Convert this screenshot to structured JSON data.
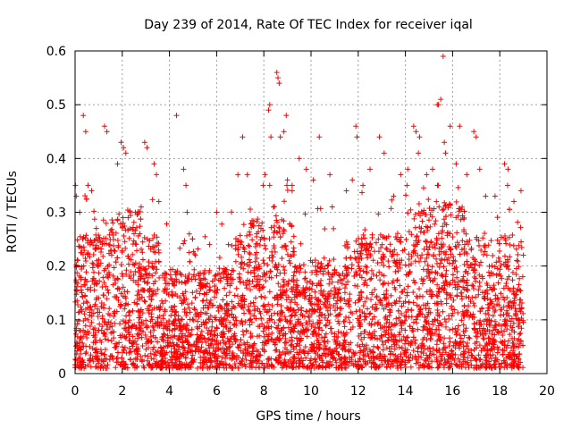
{
  "chart_data": {
    "type": "scatter",
    "title": "Day 239 of 2014, Rate Of TEC Index for receiver iqal",
    "xlabel": "GPS time / hours",
    "ylabel": "ROTI / TECUs",
    "xlim": [
      0,
      20
    ],
    "ylim": [
      0,
      0.6
    ],
    "xticks": [
      "0",
      "2",
      "4",
      "6",
      "8",
      "10",
      "12",
      "14",
      "16",
      "18",
      "20"
    ],
    "yticks": [
      "0",
      "0.1",
      "0.2",
      "0.3",
      "0.4",
      "0.5",
      "0.6"
    ],
    "grid": true,
    "marker": "plus",
    "color": "#ff0000",
    "data_range_hours": [
      0,
      19
    ],
    "series": [
      {
        "name": "ROTI",
        "points": [
          [
            0.05,
            0.33
          ],
          [
            0.2,
            0.3
          ],
          [
            0.35,
            0.48
          ],
          [
            0.45,
            0.45
          ],
          [
            0.55,
            0.35
          ],
          [
            0.7,
            0.34
          ],
          [
            0.9,
            0.27
          ],
          [
            1.25,
            0.46
          ],
          [
            1.35,
            0.45
          ],
          [
            1.6,
            0.28
          ],
          [
            1.8,
            0.39
          ],
          [
            1.95,
            0.43
          ],
          [
            2.05,
            0.42
          ],
          [
            2.15,
            0.41
          ],
          [
            2.25,
            0.29
          ],
          [
            2.5,
            0.26
          ],
          [
            2.8,
            0.31
          ],
          [
            2.95,
            0.43
          ],
          [
            3.05,
            0.42
          ],
          [
            3.35,
            0.39
          ],
          [
            3.55,
            0.32
          ],
          [
            3.45,
            0.37
          ],
          [
            4.3,
            0.48
          ],
          [
            4.6,
            0.38
          ],
          [
            4.7,
            0.35
          ],
          [
            4.75,
            0.3
          ],
          [
            5.1,
            0.22
          ],
          [
            5.7,
            0.24
          ],
          [
            6.0,
            0.3
          ],
          [
            6.5,
            0.24
          ],
          [
            6.9,
            0.37
          ],
          [
            7.1,
            0.44
          ],
          [
            7.3,
            0.37
          ],
          [
            7.5,
            0.28
          ],
          [
            7.7,
            0.26
          ],
          [
            8.05,
            0.37
          ],
          [
            8.2,
            0.49
          ],
          [
            8.25,
            0.5
          ],
          [
            8.3,
            0.44
          ],
          [
            8.55,
            0.56
          ],
          [
            8.6,
            0.55
          ],
          [
            8.65,
            0.54
          ],
          [
            8.7,
            0.44
          ],
          [
            8.85,
            0.45
          ],
          [
            8.95,
            0.48
          ],
          [
            9.0,
            0.36
          ],
          [
            9.2,
            0.34
          ],
          [
            9.5,
            0.4
          ],
          [
            9.8,
            0.38
          ],
          [
            10.1,
            0.36
          ],
          [
            10.35,
            0.44
          ],
          [
            10.8,
            0.37
          ],
          [
            10.9,
            0.31
          ],
          [
            11.5,
            0.34
          ],
          [
            11.75,
            0.36
          ],
          [
            11.9,
            0.46
          ],
          [
            11.95,
            0.44
          ],
          [
            12.2,
            0.35
          ],
          [
            12.5,
            0.38
          ],
          [
            12.9,
            0.44
          ],
          [
            13.1,
            0.41
          ],
          [
            13.5,
            0.33
          ],
          [
            13.8,
            0.37
          ],
          [
            14.1,
            0.38
          ],
          [
            14.35,
            0.46
          ],
          [
            14.45,
            0.45
          ],
          [
            14.6,
            0.44
          ],
          [
            14.55,
            0.41
          ],
          [
            14.9,
            0.37
          ],
          [
            15.15,
            0.38
          ],
          [
            15.35,
            0.5
          ],
          [
            15.4,
            0.5
          ],
          [
            15.5,
            0.51
          ],
          [
            15.6,
            0.59
          ],
          [
            15.65,
            0.43
          ],
          [
            15.7,
            0.41
          ],
          [
            15.9,
            0.46
          ],
          [
            16.15,
            0.39
          ],
          [
            16.3,
            0.46
          ],
          [
            16.6,
            0.37
          ],
          [
            16.9,
            0.45
          ],
          [
            17.0,
            0.44
          ],
          [
            17.15,
            0.38
          ],
          [
            17.4,
            0.33
          ],
          [
            17.8,
            0.33
          ],
          [
            18.2,
            0.39
          ],
          [
            18.35,
            0.38
          ],
          [
            18.6,
            0.32
          ],
          [
            18.9,
            0.34
          ]
        ]
      }
    ]
  }
}
